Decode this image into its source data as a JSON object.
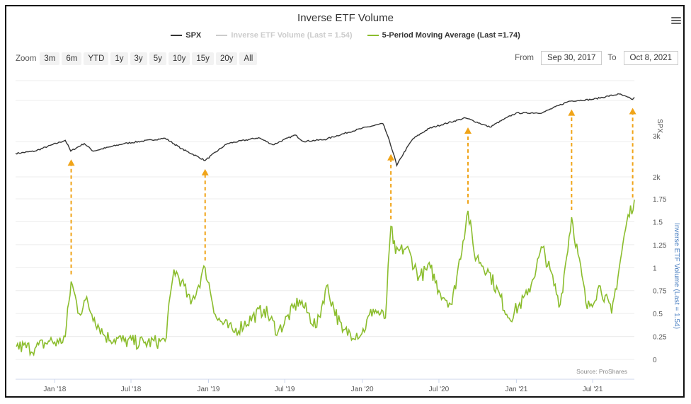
{
  "toolbar": {
    "zoom_label": "Zoom",
    "zoom_buttons": [
      "3m",
      "6m",
      "YTD",
      "1y",
      "3y",
      "5y",
      "10y",
      "15y",
      "20y",
      "All"
    ],
    "from_label": "From",
    "from_value": "Sep 30, 2017",
    "to_label": "To",
    "to_value": "Oct 8, 2021",
    "menu_icon": "hamburger-menu-icon"
  },
  "source": "Source: ProShares",
  "colors": {
    "spx": "#333333",
    "inverse": "#cccccc",
    "ma": "#8bbd2d",
    "arrow": "#f0a418"
  },
  "chart_data": {
    "type": "line",
    "title": "Inverse ETF Volume",
    "legend": [
      {
        "name": "SPX"
      },
      {
        "name": "Inverse ETF Volume (Last = 1.54)"
      },
      {
        "name": "5-Period Moving Average (Last =1.74)"
      }
    ],
    "legend_placement": "top",
    "x_ticks": [
      "Jan '18",
      "Jul '18",
      "Jan '19",
      "Jul '19",
      "Jan '20",
      "Jul '20",
      "Jan '21",
      "Jul '21"
    ],
    "x_range": [
      "2017-09-30",
      "2021-10-08"
    ],
    "y_right_top": {
      "label": "SPX",
      "scale": "log",
      "ticks": [
        "2k",
        "3k"
      ]
    },
    "y_right_bottom": {
      "label": "Inverse ETF Volume (Last = 1.54)",
      "range": [
        0,
        1.75
      ],
      "ticks": [
        "0",
        "0.25",
        "0.5",
        "0.75",
        "1",
        "1.25",
        "1.5",
        "1.75"
      ]
    },
    "grid": true,
    "series": [
      {
        "key": "spx",
        "name": "SPX",
        "axis": "y_right_top",
        "points": [
          [
            "2017-09-30",
            2520
          ],
          [
            "2017-11-15",
            2580
          ],
          [
            "2018-01-26",
            2870
          ],
          [
            "2018-02-08",
            2580
          ],
          [
            "2018-03-12",
            2780
          ],
          [
            "2018-04-02",
            2580
          ],
          [
            "2018-06-15",
            2780
          ],
          [
            "2018-09-20",
            2930
          ],
          [
            "2018-10-29",
            2640
          ],
          [
            "2018-12-24",
            2350
          ],
          [
            "2019-02-15",
            2780
          ],
          [
            "2019-04-30",
            2945
          ],
          [
            "2019-06-03",
            2745
          ],
          [
            "2019-07-26",
            3025
          ],
          [
            "2019-08-14",
            2840
          ],
          [
            "2019-10-03",
            2890
          ],
          [
            "2019-12-31",
            3230
          ],
          [
            "2020-02-19",
            3386
          ],
          [
            "2020-03-23",
            2237
          ],
          [
            "2020-04-30",
            2910
          ],
          [
            "2020-06-08",
            3230
          ],
          [
            "2020-09-02",
            3580
          ],
          [
            "2020-10-30",
            3270
          ],
          [
            "2020-12-31",
            3756
          ],
          [
            "2021-03-04",
            3770
          ],
          [
            "2021-05-07",
            4230
          ],
          [
            "2021-06-30",
            4300
          ],
          [
            "2021-09-02",
            4536
          ],
          [
            "2021-10-04",
            4300
          ],
          [
            "2021-10-08",
            4391
          ]
        ]
      },
      {
        "key": "ma",
        "name": "5-Period Moving Average (Last =1.74)",
        "axis": "y_right_bottom",
        "points": [
          [
            "2017-10-02",
            0.14
          ],
          [
            "2017-11-15",
            0.12
          ],
          [
            "2017-12-20",
            0.2
          ],
          [
            "2018-01-10",
            0.18
          ],
          [
            "2018-01-26",
            0.25
          ],
          [
            "2018-02-09",
            0.85
          ],
          [
            "2018-02-28",
            0.5
          ],
          [
            "2018-03-15",
            0.65
          ],
          [
            "2018-04-05",
            0.45
          ],
          [
            "2018-05-01",
            0.25
          ],
          [
            "2018-06-15",
            0.2
          ],
          [
            "2018-08-01",
            0.18
          ],
          [
            "2018-09-20",
            0.2
          ],
          [
            "2018-10-11",
            0.98
          ],
          [
            "2018-10-29",
            0.85
          ],
          [
            "2018-11-20",
            0.6
          ],
          [
            "2018-12-24",
            1.0
          ],
          [
            "2019-01-20",
            0.45
          ],
          [
            "2019-03-01",
            0.3
          ],
          [
            "2019-05-13",
            0.55
          ],
          [
            "2019-06-15",
            0.3
          ],
          [
            "2019-08-05",
            0.65
          ],
          [
            "2019-09-15",
            0.35
          ],
          [
            "2019-10-08",
            0.8
          ],
          [
            "2019-11-15",
            0.3
          ],
          [
            "2019-12-31",
            0.28
          ],
          [
            "2020-01-27",
            0.55
          ],
          [
            "2020-02-25",
            0.45
          ],
          [
            "2020-03-09",
            1.45
          ],
          [
            "2020-03-20",
            1.15
          ],
          [
            "2020-04-15",
            1.22
          ],
          [
            "2020-05-15",
            0.9
          ],
          [
            "2020-06-11",
            1.0
          ],
          [
            "2020-07-01",
            0.75
          ],
          [
            "2020-08-01",
            0.6
          ],
          [
            "2020-09-08",
            1.62
          ],
          [
            "2020-09-23",
            1.15
          ],
          [
            "2020-10-28",
            0.95
          ],
          [
            "2020-12-15",
            0.45
          ],
          [
            "2021-01-27",
            0.7
          ],
          [
            "2021-03-04",
            1.22
          ],
          [
            "2021-04-15",
            0.6
          ],
          [
            "2021-05-12",
            1.55
          ],
          [
            "2021-06-18",
            0.55
          ],
          [
            "2021-07-19",
            0.8
          ],
          [
            "2021-08-15",
            0.5
          ],
          [
            "2021-09-20",
            1.5
          ],
          [
            "2021-10-08",
            1.74
          ]
        ]
      }
    ],
    "annotations": [
      {
        "type": "arrow",
        "date": "2018-02-09"
      },
      {
        "type": "arrow",
        "date": "2018-12-24"
      },
      {
        "type": "arrow",
        "date": "2020-03-09"
      },
      {
        "type": "arrow",
        "date": "2020-09-08"
      },
      {
        "type": "arrow",
        "date": "2021-05-12"
      },
      {
        "type": "arrow",
        "date": "2021-10-04"
      }
    ]
  }
}
